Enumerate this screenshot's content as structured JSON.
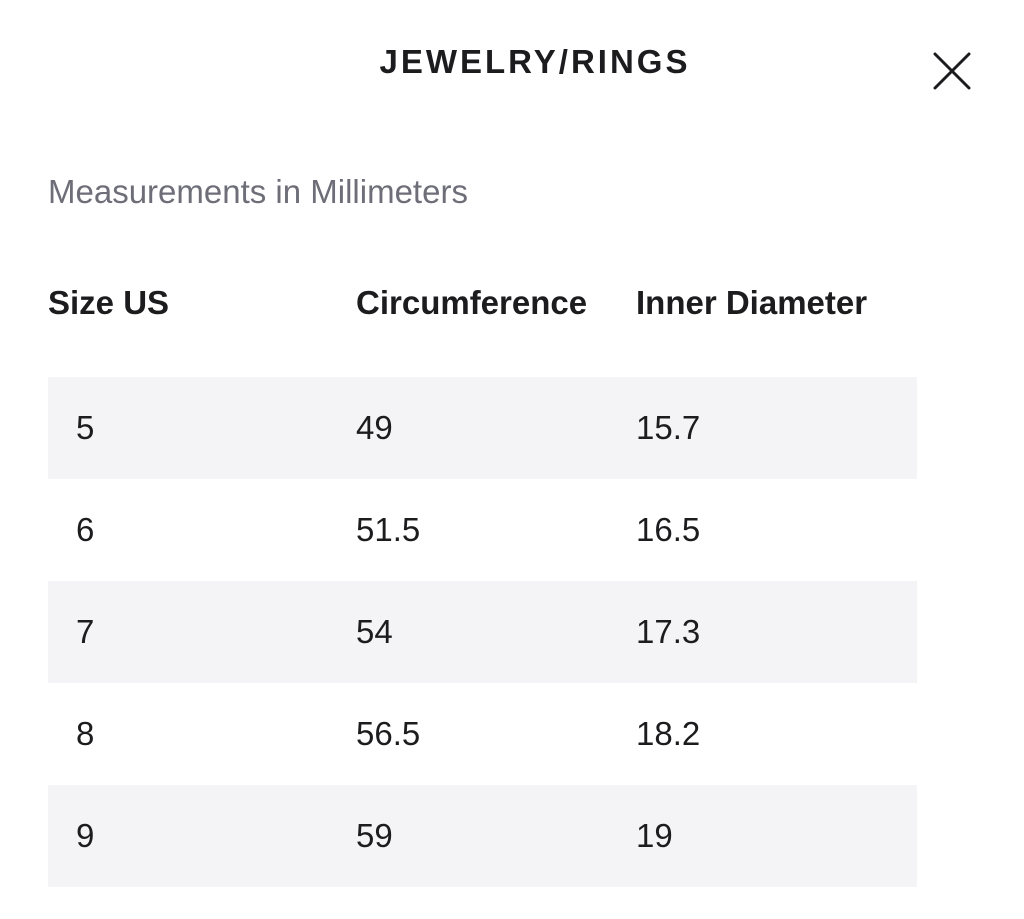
{
  "header": {
    "title": "JEWELRY/RINGS",
    "close_icon": "close-icon"
  },
  "subtitle": "Measurements in Millimeters",
  "table": {
    "columns": [
      "Size US",
      "Circumference",
      "Inner Diameter"
    ],
    "rows": [
      [
        "5",
        "49",
        "15.7"
      ],
      [
        "6",
        "51.5",
        "16.5"
      ],
      [
        "7",
        "54",
        "17.3"
      ],
      [
        "8",
        "56.5",
        "18.2"
      ],
      [
        "9",
        "59",
        "19"
      ]
    ]
  },
  "colors": {
    "text": "#1c1c1e",
    "muted_text": "#6e6e78",
    "row_stripe": "#f4f4f6",
    "background": "#ffffff"
  }
}
